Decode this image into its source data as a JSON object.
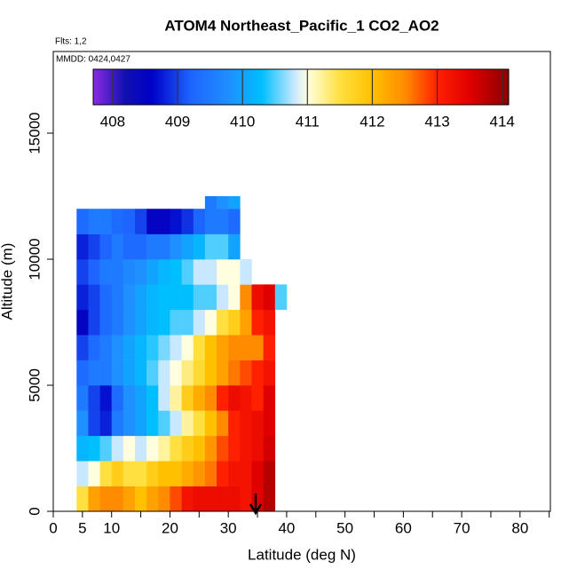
{
  "chart_data": {
    "type": "heatmap",
    "title": "ATOM4 Northeast_Pacific_1 CO2_AO2",
    "annotations": [
      "Flts: 1,2",
      "MMDD: 0424,0427"
    ],
    "x_label": "Latitude (deg N)",
    "y_label": "Altitude (m)",
    "xlim": [
      0,
      85.2
    ],
    "ylim": [
      0,
      18240
    ],
    "xticks": [
      0,
      5,
      10,
      20,
      30,
      40,
      50,
      60,
      70,
      80
    ],
    "xminor_ticks": [
      15,
      25,
      35,
      45,
      55,
      65,
      75,
      85
    ],
    "yticks": [
      0,
      5000,
      10000,
      15000
    ],
    "xbins": [
      4,
      6,
      8,
      10,
      12,
      14,
      16,
      18,
      20,
      22,
      24,
      26,
      28,
      30,
      32,
      34,
      36,
      38,
      40
    ],
    "ybins": [
      0,
      1000,
      2000,
      3000,
      4000,
      5000,
      6000,
      7000,
      8000,
      9000,
      10000,
      11000,
      12000,
      12500
    ],
    "values": [
      [
        411.5,
        412.3,
        412.5,
        412.5,
        412.3,
        412,
        412.3,
        412.5,
        412.8,
        413.2,
        413.3,
        413.3,
        413.3,
        413.3,
        413.2,
        413.5,
        413.8,
        null
      ],
      [
        410.8,
        411,
        411.5,
        411.8,
        411.5,
        411.5,
        411.8,
        412,
        412,
        412.2,
        412.4,
        412.6,
        413,
        413.2,
        413.2,
        413.5,
        413.8,
        null
      ],
      [
        410.2,
        410.3,
        410.5,
        410.8,
        411,
        410.8,
        411,
        411.2,
        411.5,
        411.8,
        412,
        412.4,
        412.8,
        413,
        413.2,
        413.3,
        413.6,
        null
      ],
      [
        409.8,
        409,
        408.8,
        409.5,
        409.8,
        410,
        410.3,
        410.5,
        410.8,
        411.2,
        411.5,
        412,
        412.5,
        413,
        413.2,
        413.3,
        413.5,
        null
      ],
      [
        409.5,
        409,
        408.7,
        409.3,
        409.8,
        410,
        410.3,
        410.8,
        411.2,
        411.8,
        412.2,
        412.5,
        413,
        413.3,
        413.2,
        413,
        413.5,
        null
      ],
      [
        409.3,
        409.5,
        409.5,
        409.8,
        410,
        410.2,
        410.5,
        410.8,
        411,
        411.3,
        411.6,
        412,
        412.3,
        412.6,
        412.8,
        413,
        413.2,
        null
      ],
      [
        409,
        409.3,
        409.5,
        409.8,
        410,
        410.2,
        410.4,
        410.6,
        410.8,
        411,
        411.5,
        412,
        412.3,
        412.5,
        412.5,
        412.5,
        413,
        null
      ],
      [
        408.5,
        409,
        409.3,
        409.5,
        409.8,
        410,
        410.2,
        410.3,
        410.5,
        410.5,
        410.8,
        411,
        411.5,
        411.8,
        412.3,
        413,
        413.2,
        null
      ],
      [
        408.8,
        409,
        409.3,
        409.5,
        409.8,
        410,
        410.2,
        410.3,
        410.3,
        410.3,
        410.5,
        410.5,
        410.8,
        411,
        412.5,
        413.3,
        413.5,
        410.5
      ],
      [
        409,
        409.2,
        409.5,
        409.5,
        409.7,
        409.8,
        410,
        410.2,
        410.3,
        410.5,
        410.8,
        410.8,
        411,
        411,
        410.8,
        null,
        null,
        null
      ],
      [
        408.8,
        409,
        409.2,
        409.5,
        409.3,
        409.3,
        409.5,
        409.5,
        409.8,
        410,
        410.2,
        410.5,
        410.5,
        410,
        null,
        null,
        null,
        null
      ],
      [
        409.3,
        409.5,
        409.5,
        409.3,
        409.2,
        409,
        408.5,
        408.5,
        408.7,
        408.9,
        409.2,
        409.5,
        409.5,
        409.3,
        null,
        null,
        null,
        null
      ],
      [
        null,
        null,
        null,
        null,
        null,
        null,
        null,
        null,
        null,
        null,
        null,
        409.5,
        409.8,
        410,
        null,
        null,
        null,
        null
      ]
    ],
    "colorbar": {
      "range": [
        407.7,
        414.1
      ],
      "ticks": [
        408,
        409,
        410,
        411,
        412,
        413,
        414
      ]
    },
    "colorscale": [
      [
        407.7,
        "#8a2be2"
      ],
      [
        408.2,
        "#1010b0"
      ],
      [
        408.6,
        "#0000c8"
      ],
      [
        409.2,
        "#1e64ff"
      ],
      [
        409.8,
        "#1e90ff"
      ],
      [
        410.3,
        "#00bfff"
      ],
      [
        410.8,
        "#c8e8ff"
      ],
      [
        411.0,
        "#ffffe0"
      ],
      [
        411.5,
        "#ffe040"
      ],
      [
        412.0,
        "#ffc000"
      ],
      [
        412.5,
        "#ff8c00"
      ],
      [
        413.0,
        "#ff2000"
      ],
      [
        413.5,
        "#e00000"
      ],
      [
        414.1,
        "#8b0000"
      ]
    ]
  }
}
